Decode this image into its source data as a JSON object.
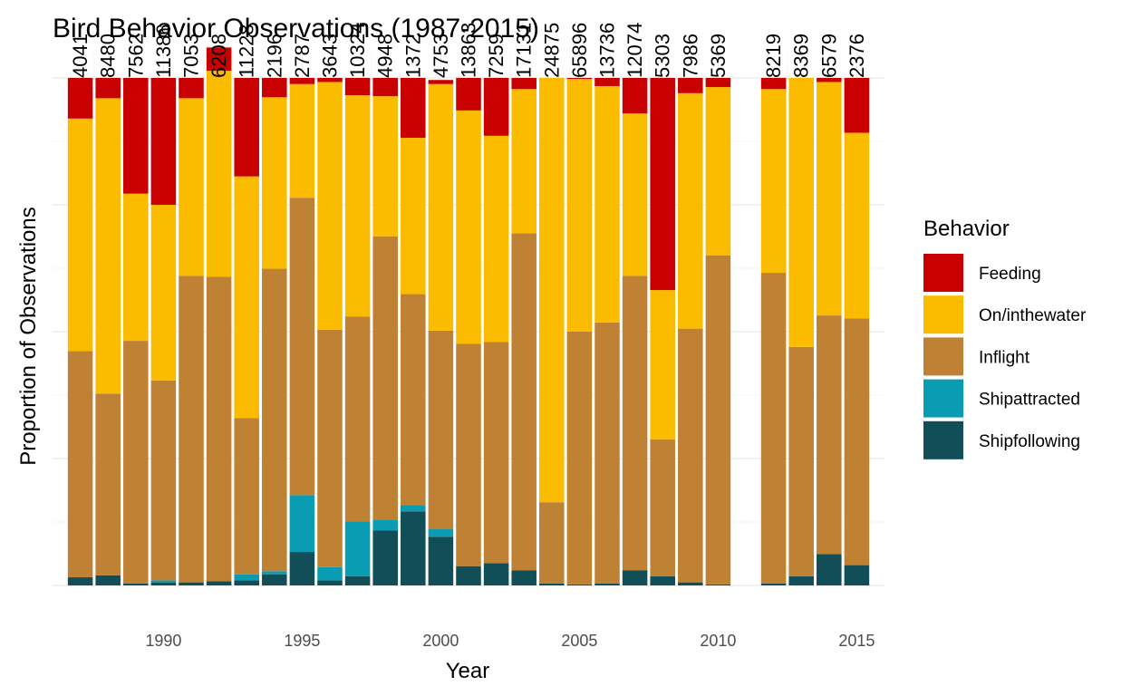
{
  "chart_data": {
    "type": "bar",
    "stacked": true,
    "normalized": true,
    "title": "Bird Behavior Observations (1987-2015)",
    "xlabel": "Year",
    "ylabel": "Proportion of Observations",
    "xlim": [
      1986,
      2016
    ],
    "ylim": [
      0,
      1.05
    ],
    "x_ticks": [
      1990,
      1995,
      2000,
      2005,
      2010,
      2015
    ],
    "grid": true,
    "legend": {
      "title": "Behavior",
      "placement": "right"
    },
    "x": [
      1987,
      1988,
      1989,
      1990,
      1991,
      1992,
      1993,
      1994,
      1995,
      1996,
      1997,
      1998,
      1999,
      2000,
      2001,
      2002,
      2003,
      2004,
      2005,
      2006,
      2007,
      2008,
      2009,
      2010,
      2012,
      2013,
      2014,
      2015
    ],
    "counts": [
      "4041",
      "8480",
      "7562",
      "11386",
      "7053",
      "6208",
      "11228",
      "2196",
      "2787",
      "3643",
      "10324",
      "4948",
      "1372",
      "4753",
      "13863",
      "7259",
      "17131",
      "24875",
      "65896",
      "13736",
      "12074",
      "5303",
      "7986",
      "5369",
      "8219",
      "8369",
      "6579",
      "2376"
    ],
    "series": [
      {
        "name": "Shipfollowing",
        "color": "#124e57",
        "values": [
          0.016,
          0.02,
          0.004,
          0.006,
          0.006,
          0.008,
          0.01,
          0.022,
          0.066,
          0.01,
          0.018,
          0.108,
          0.146,
          0.096,
          0.038,
          0.044,
          0.03,
          0.004,
          0.002,
          0.004,
          0.03,
          0.018,
          0.006,
          0.002,
          0.004,
          0.018,
          0.062,
          0.04
        ]
      },
      {
        "name": "Shipattracted",
        "color": "#0a9cb3",
        "values": [
          0.0,
          0.0,
          0.0,
          0.004,
          0.0,
          0.0,
          0.012,
          0.006,
          0.112,
          0.026,
          0.108,
          0.022,
          0.012,
          0.016,
          0.0,
          0.0,
          0.0,
          0.0,
          0.0,
          0.0,
          0.0,
          0.0,
          0.0,
          0.0,
          0.0,
          0.0,
          0.0,
          0.0
        ]
      },
      {
        "name": "Inflight",
        "color": "#bf8234",
        "values": [
          0.446,
          0.358,
          0.478,
          0.394,
          0.604,
          0.6,
          0.308,
          0.596,
          0.586,
          0.468,
          0.404,
          0.558,
          0.416,
          0.39,
          0.438,
          0.436,
          0.664,
          0.16,
          0.498,
          0.514,
          0.58,
          0.27,
          0.5,
          0.648,
          0.612,
          0.452,
          0.47,
          0.486
        ]
      },
      {
        "name": "On/inthewater",
        "color": "#fbbc00",
        "values": [
          0.458,
          0.582,
          0.29,
          0.346,
          0.35,
          0.406,
          0.476,
          0.338,
          0.224,
          0.488,
          0.436,
          0.276,
          0.308,
          0.486,
          0.46,
          0.406,
          0.284,
          0.836,
          0.498,
          0.466,
          0.32,
          0.294,
          0.464,
          0.332,
          0.362,
          0.53,
          0.46,
          0.366
        ]
      },
      {
        "name": "Feeding",
        "color": "#c90000",
        "values": [
          0.08,
          0.04,
          0.228,
          0.25,
          0.04,
          0.046,
          0.194,
          0.038,
          0.012,
          0.008,
          0.034,
          0.036,
          0.118,
          0.008,
          0.064,
          0.114,
          0.022,
          0.0,
          0.002,
          0.016,
          0.07,
          0.418,
          0.03,
          0.018,
          0.022,
          0.0,
          0.008,
          0.108
        ]
      }
    ]
  }
}
